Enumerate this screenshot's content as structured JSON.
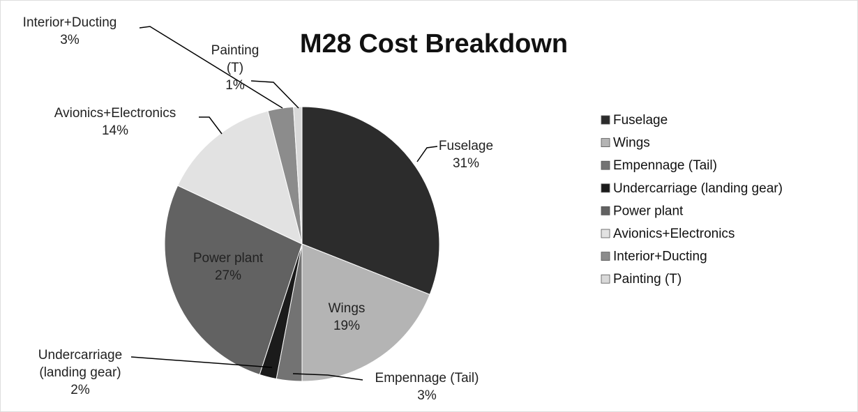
{
  "chart_data": {
    "type": "pie",
    "title": "M28 Cost Breakdown",
    "categories": [
      "Fuselage",
      "Wings",
      "Empennage (Tail)",
      "Undercarriage (landing gear)",
      "Power plant",
      "Avionics+Electronics",
      "Interior+Ducting",
      "Painting (T)"
    ],
    "values": [
      31,
      19,
      3,
      2,
      27,
      14,
      3,
      1
    ],
    "value_labels": [
      "31%",
      "19%",
      "3%",
      "2%",
      "27%",
      "14%",
      "3%",
      "1%"
    ],
    "colors": [
      "#2c2c2c",
      "#b4b4b4",
      "#737373",
      "#1b1b1b",
      "#626262",
      "#e2e2e2",
      "#8c8c8c",
      "#d9d9d9"
    ],
    "legend": "right"
  }
}
